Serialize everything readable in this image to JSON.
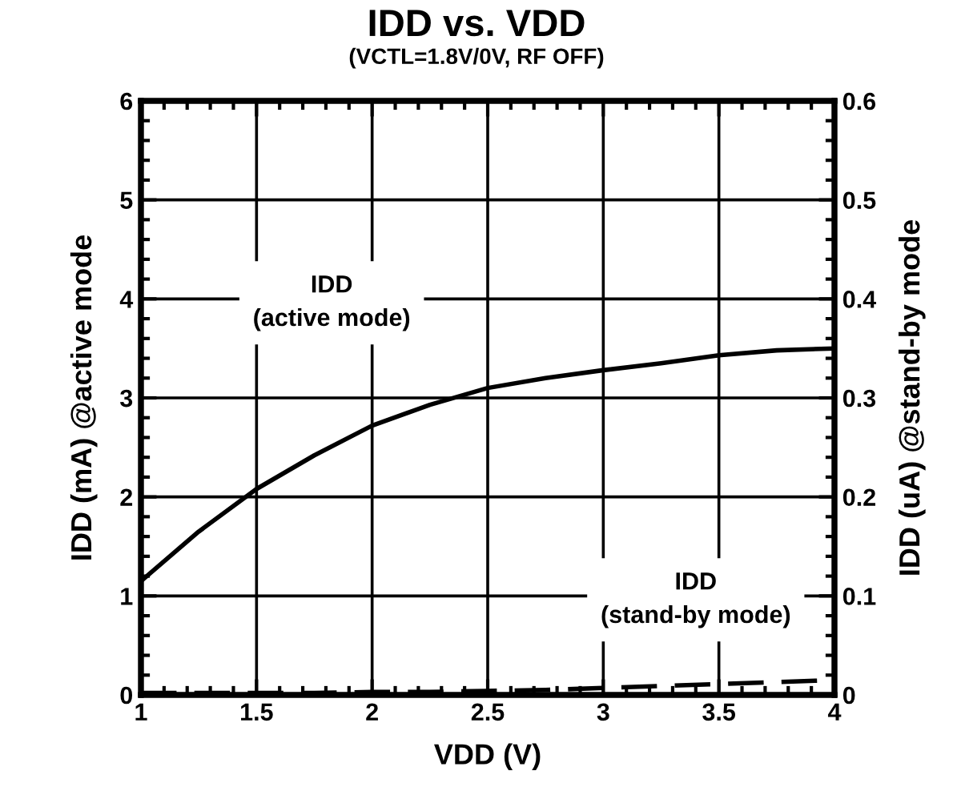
{
  "chart_data": {
    "type": "line",
    "title": "IDD vs. VDD",
    "subtitle": "(VCTL=1.8V/0V, RF OFF)",
    "xlabel": "VDD (V)",
    "ylabel": "IDD (mA) @active mode",
    "y2label": "IDD (uA) @stand-by mode",
    "annotations": [
      "IDD\n(active mode)",
      "IDD\n(stand-by mode)"
    ],
    "x": [
      1.0,
      1.25,
      1.5,
      1.75,
      2.0,
      2.25,
      2.5,
      2.75,
      3.0,
      3.25,
      3.5,
      3.75,
      4.0
    ],
    "series": [
      {
        "color": "#000000",
        "line_style": "solid",
        "values": [
          1.15,
          1.65,
          2.08,
          2.42,
          2.72,
          2.93,
          3.1,
          3.2,
          3.28,
          3.35,
          3.43,
          3.48,
          3.5
        ]
      },
      {
        "color": "#000000",
        "line_style": "dashed",
        "axis": "y2",
        "values": [
          0.002,
          0.002,
          0.002,
          0.002,
          0.003,
          0.003,
          0.004,
          0.005,
          0.007,
          0.009,
          0.011,
          0.013,
          0.015
        ]
      }
    ],
    "xlim": [
      1,
      4
    ],
    "xticks": [
      1,
      1.5,
      2,
      2.5,
      3,
      3.5,
      4
    ],
    "ylim": [
      0,
      6
    ],
    "yticks": [
      0,
      1,
      2,
      3,
      4,
      5,
      6
    ],
    "y2lim": [
      0,
      0.6
    ],
    "y2ticks": [
      0,
      0.1,
      0.2,
      0.3,
      0.4,
      0.5,
      0.6
    ],
    "grid": true,
    "marker": "none"
  }
}
